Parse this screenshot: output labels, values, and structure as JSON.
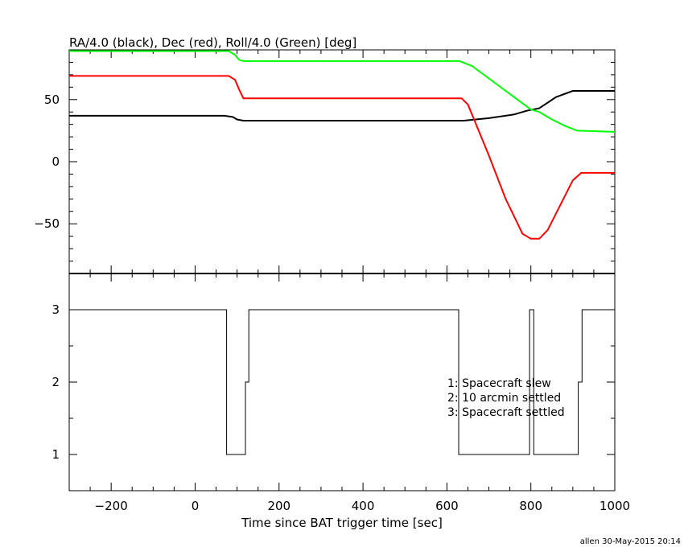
{
  "chart_data": [
    {
      "type": "line",
      "title": "RA/4.0 (black), Dec (red), Roll/4.0 (Green) [deg]",
      "xlim": [
        -300,
        1000
      ],
      "ylim": [
        -90,
        90
      ],
      "yticks": [
        -50,
        0,
        50
      ],
      "series": [
        {
          "color": "#000000",
          "x": [
            -300,
            70,
            90,
            100,
            115,
            370,
            640,
            700,
            760,
            790,
            820,
            860,
            900,
            920,
            1000
          ],
          "y": [
            37,
            37,
            36,
            34,
            33,
            33,
            33,
            35,
            38,
            41,
            43,
            52,
            57,
            57,
            57
          ]
        },
        {
          "color": "#ff0000",
          "x": [
            -300,
            80,
            95,
            105,
            115,
            370,
            635,
            650,
            700,
            740,
            780,
            800,
            820,
            840,
            870,
            900,
            920,
            1000
          ],
          "y": [
            69,
            69,
            66,
            58,
            51,
            51,
            51,
            46,
            5,
            -30,
            -58,
            -62,
            -62,
            -55,
            -35,
            -15,
            -9,
            -9
          ]
        },
        {
          "color": "#00ff00",
          "x": [
            -300,
            80,
            95,
            105,
            115,
            370,
            630,
            660,
            700,
            740,
            780,
            800,
            820,
            850,
            880,
            910,
            1000
          ],
          "y": [
            89,
            89,
            86,
            82,
            81,
            81,
            81,
            77,
            67,
            57,
            47,
            42,
            40,
            34,
            29,
            25,
            24
          ]
        }
      ]
    },
    {
      "type": "line",
      "xlabel": "Time since BAT trigger time [sec]",
      "xlim": [
        -300,
        1000
      ],
      "ylim": [
        0.5,
        3.5
      ],
      "xticks": [
        -200,
        0,
        200,
        400,
        600,
        800,
        1000
      ],
      "yticks": [
        1,
        2,
        3
      ],
      "annotations": [
        "1: Spacecraft slew",
        "2: 10 arcmin settled",
        "3: Spacecraft settled"
      ],
      "series": [
        {
          "color": "#000000",
          "x": [
            -300,
            75,
            75,
            120,
            120,
            128,
            128,
            628,
            628,
            797,
            797,
            807,
            807,
            811,
            811,
            913,
            913,
            922,
            922,
            1000
          ],
          "y": [
            3,
            3,
            1,
            1,
            2,
            2,
            3,
            3,
            1,
            1,
            3,
            3,
            1,
            1,
            1,
            1,
            2,
            2,
            3,
            3
          ]
        }
      ]
    }
  ],
  "footer": "allen 30-May-2015 20:14"
}
